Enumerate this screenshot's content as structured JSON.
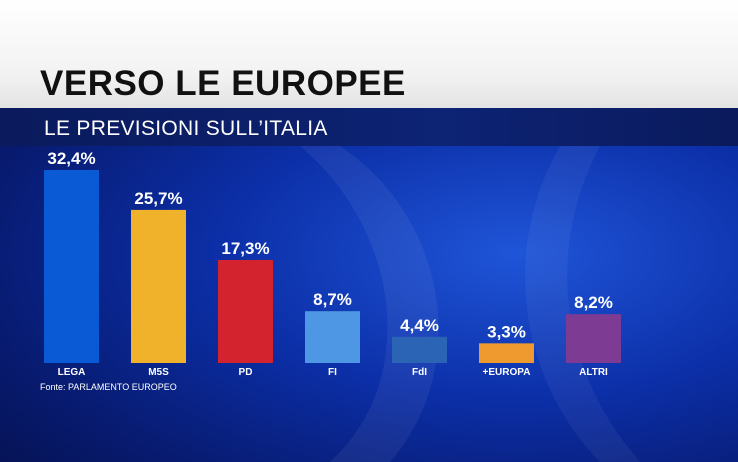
{
  "header": {
    "title": "VERSO LE EUROPEE",
    "subtitle": "LE PREVISIONI SULL’ITALIA"
  },
  "chart_data": {
    "type": "bar",
    "categories": [
      "LEGA",
      "M5S",
      "PD",
      "FI",
      "FdI",
      "+EUROPA",
      "ALTRI"
    ],
    "values": [
      32.4,
      25.7,
      17.3,
      8.7,
      4.4,
      3.3,
      8.2
    ],
    "value_labels": [
      "32,4%",
      "25,7%",
      "17,3%",
      "8,7%",
      "4,4%",
      "3,3%",
      "8,2%"
    ],
    "colors": [
      "#0a5ad6",
      "#f0b22a",
      "#d2232e",
      "#4d97e4",
      "#2b64b4",
      "#ee9a2e",
      "#7d3b93"
    ],
    "title": "",
    "xlabel": "",
    "ylabel": "",
    "ylim": [
      0,
      32.4
    ]
  },
  "footer": {
    "source": "Fonte: PARLAMENTO EUROPEO"
  }
}
